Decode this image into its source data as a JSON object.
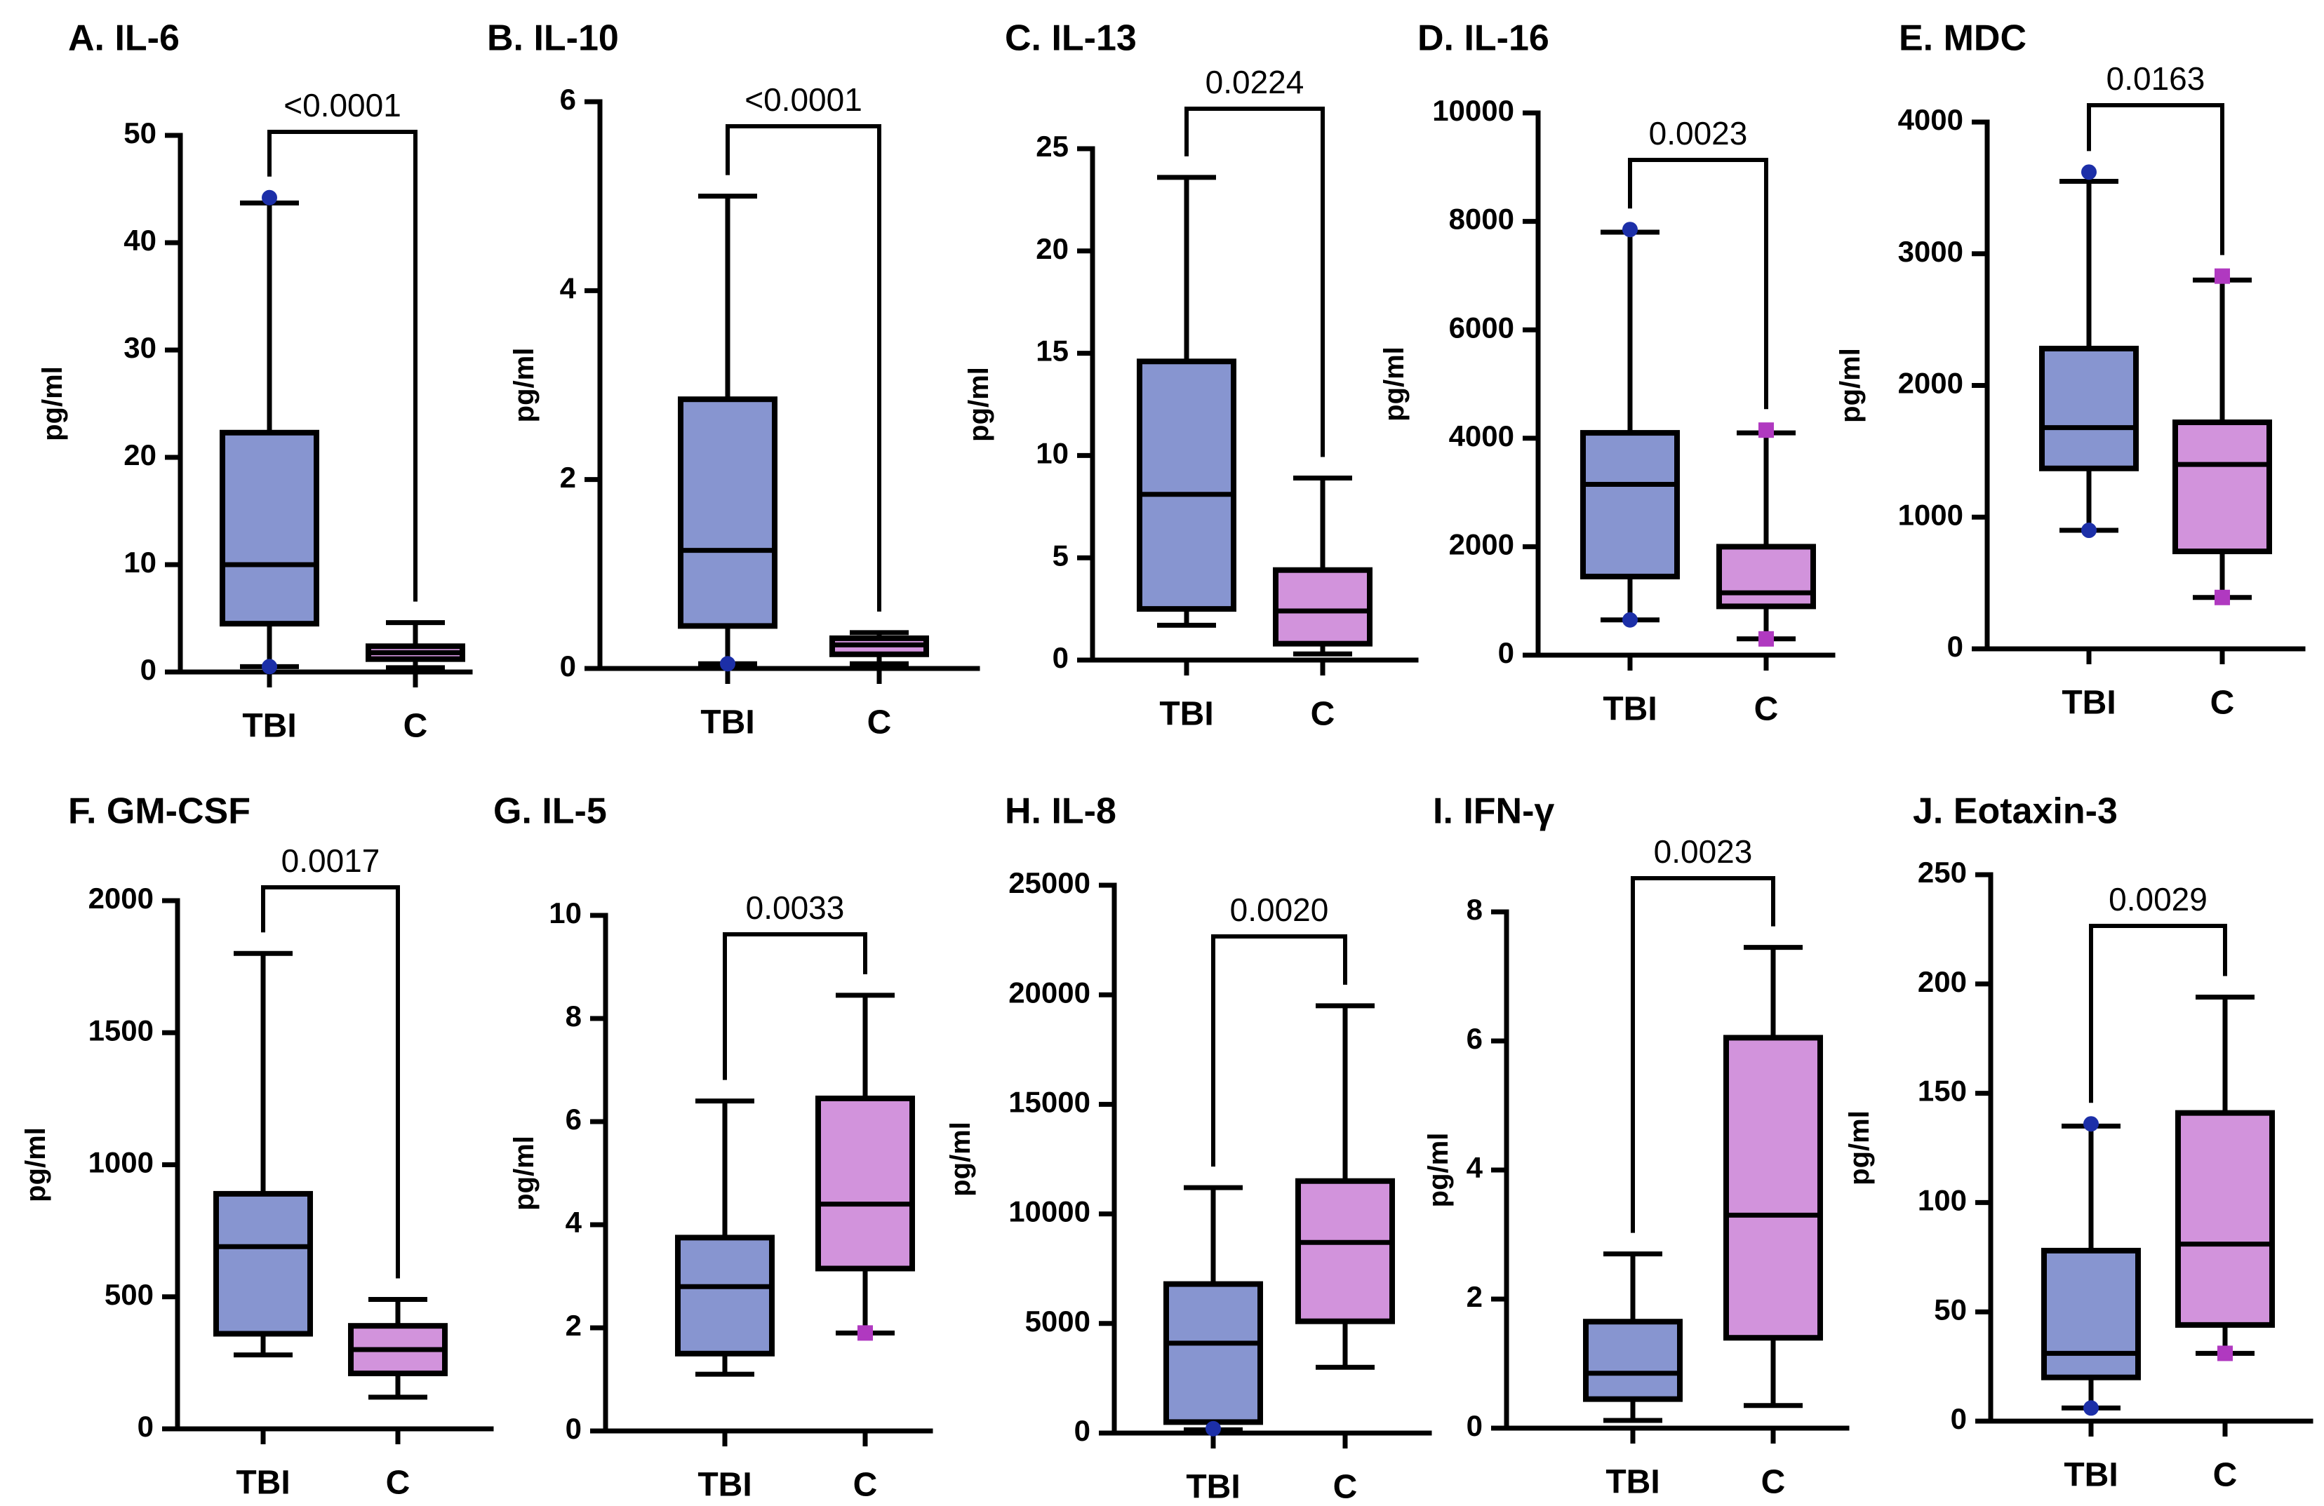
{
  "colors": {
    "tbi": "#8795d0",
    "c": "#d293dc",
    "tbi_point": "#1c2fa8",
    "c_point": "#b039c0"
  },
  "chart_data": [
    {
      "id": "A",
      "title": "A. IL-6",
      "type": "box",
      "ylabel": "pg/ml",
      "ylim": [
        0,
        50
      ],
      "yticks": [
        "0",
        "10",
        "20",
        "30",
        "40",
        "50"
      ],
      "pvalue": "<0.0001",
      "categories": [
        "TBI",
        "C"
      ],
      "series": [
        {
          "name": "TBI",
          "min": 0.5,
          "q1": 4.5,
          "median": 10,
          "q3": 22.3,
          "max": 43.7,
          "points": [
            44.2,
            0.5
          ]
        },
        {
          "name": "C",
          "min": 0.4,
          "q1": 1.2,
          "median": 1.8,
          "q3": 2.4,
          "max": 4.6,
          "points": []
        }
      ]
    },
    {
      "id": "B",
      "title": "B. IL-10",
      "type": "box",
      "ylabel": "pg/ml",
      "ylim": [
        0,
        6
      ],
      "yticks": [
        "0",
        "2",
        "4",
        "6"
      ],
      "pvalue": "<0.0001",
      "categories": [
        "TBI",
        "C"
      ],
      "series": [
        {
          "name": "TBI",
          "min": 0.05,
          "q1": 0.45,
          "median": 1.25,
          "q3": 2.85,
          "max": 5.0,
          "points": [
            0.05
          ]
        },
        {
          "name": "C",
          "min": 0.05,
          "q1": 0.15,
          "median": 0.25,
          "q3": 0.32,
          "max": 0.38,
          "points": []
        }
      ]
    },
    {
      "id": "C",
      "title": "C. IL-13",
      "type": "box",
      "ylabel": "pg/ml",
      "ylim": [
        0,
        25
      ],
      "yticks": [
        "0",
        "5",
        "10",
        "15",
        "20",
        "25"
      ],
      "pvalue": "0.0224",
      "categories": [
        "TBI",
        "C"
      ],
      "series": [
        {
          "name": "TBI",
          "min": 1.7,
          "q1": 2.5,
          "median": 8.1,
          "q3": 14.6,
          "max": 23.6,
          "points": []
        },
        {
          "name": "C",
          "min": 0.3,
          "q1": 0.8,
          "median": 2.4,
          "q3": 4.4,
          "max": 8.9,
          "points": []
        }
      ]
    },
    {
      "id": "D",
      "title": "D. IL-16",
      "type": "box",
      "ylabel": "pg/ml",
      "ylim": [
        0,
        10000
      ],
      "yticks": [
        "0",
        "2000",
        "4000",
        "6000",
        "8000",
        "10000"
      ],
      "pvalue": "0.0023",
      "categories": [
        "TBI",
        "C"
      ],
      "series": [
        {
          "name": "TBI",
          "min": 650,
          "q1": 1450,
          "median": 3150,
          "q3": 4100,
          "max": 7800,
          "points": [
            7850,
            650
          ]
        },
        {
          "name": "C",
          "min": 300,
          "q1": 900,
          "median": 1150,
          "q3": 2000,
          "max": 4100,
          "points": [
            4150,
            300
          ]
        }
      ]
    },
    {
      "id": "E",
      "title": "E. MDC",
      "type": "box",
      "ylabel": "pg/ml",
      "ylim": [
        0,
        4000
      ],
      "yticks": [
        "0",
        "1000",
        "2000",
        "3000",
        "4000"
      ],
      "pvalue": "0.0163",
      "categories": [
        "TBI",
        "C"
      ],
      "series": [
        {
          "name": "TBI",
          "min": 900,
          "q1": 1370,
          "median": 1680,
          "q3": 2280,
          "max": 3550,
          "points": [
            3620,
            900
          ]
        },
        {
          "name": "C",
          "min": 390,
          "q1": 740,
          "median": 1400,
          "q3": 1720,
          "max": 2800,
          "points": [
            2830,
            390
          ]
        }
      ]
    },
    {
      "id": "F",
      "title": "F. GM-CSF",
      "type": "box",
      "ylabel": "pg/ml",
      "ylim": [
        0,
        2000
      ],
      "yticks": [
        "0",
        "500",
        "1000",
        "1500",
        "2000"
      ],
      "pvalue": "0.0017",
      "categories": [
        "TBI",
        "C"
      ],
      "series": [
        {
          "name": "TBI",
          "min": 280,
          "q1": 360,
          "median": 690,
          "q3": 890,
          "max": 1800,
          "points": []
        },
        {
          "name": "C",
          "min": 120,
          "q1": 210,
          "median": 300,
          "q3": 390,
          "max": 490,
          "points": []
        }
      ]
    },
    {
      "id": "G",
      "title": "G. IL-5",
      "type": "box",
      "ylabel": "pg/ml",
      "ylim": [
        0,
        10
      ],
      "yticks": [
        "0",
        "2",
        "4",
        "6",
        "8",
        "10"
      ],
      "pvalue": "0.0033",
      "categories": [
        "TBI",
        "C"
      ],
      "series": [
        {
          "name": "TBI",
          "min": 1.1,
          "q1": 1.5,
          "median": 2.8,
          "q3": 3.75,
          "max": 6.4,
          "points": []
        },
        {
          "name": "C",
          "min": 1.9,
          "q1": 3.15,
          "median": 4.4,
          "q3": 6.45,
          "max": 8.45,
          "points": [
            1.9
          ]
        }
      ]
    },
    {
      "id": "H",
      "title": "H. IL-8",
      "type": "box",
      "ylabel": "pg/ml",
      "ylim": [
        0,
        25000
      ],
      "yticks": [
        "0",
        "5000",
        "10000",
        "15000",
        "20000",
        "25000"
      ],
      "pvalue": "0.0020",
      "categories": [
        "TBI",
        "C"
      ],
      "series": [
        {
          "name": "TBI",
          "min": 150,
          "q1": 500,
          "median": 4100,
          "q3": 6800,
          "max": 11200,
          "points": [
            200
          ]
        },
        {
          "name": "C",
          "min": 3000,
          "q1": 5100,
          "median": 8700,
          "q3": 11500,
          "max": 19500,
          "points": []
        }
      ]
    },
    {
      "id": "I",
      "title": "I. IFN-γ",
      "type": "box",
      "ylabel": "pg/ml",
      "ylim": [
        0,
        8
      ],
      "yticks": [
        "0",
        "2",
        "4",
        "6",
        "8"
      ],
      "pvalue": "0.0023",
      "categories": [
        "TBI",
        "C"
      ],
      "series": [
        {
          "name": "TBI",
          "min": 0.12,
          "q1": 0.45,
          "median": 0.85,
          "q3": 1.65,
          "max": 2.7,
          "points": []
        },
        {
          "name": "C",
          "min": 0.35,
          "q1": 1.4,
          "median": 3.3,
          "q3": 6.05,
          "max": 7.45,
          "points": []
        }
      ]
    },
    {
      "id": "J",
      "title": "J. Eotaxin-3",
      "type": "box",
      "ylabel": "pg/ml",
      "ylim": [
        0,
        250
      ],
      "yticks": [
        "0",
        "50",
        "100",
        "150",
        "200",
        "250"
      ],
      "pvalue": "0.0029",
      "categories": [
        "TBI",
        "C"
      ],
      "series": [
        {
          "name": "TBI",
          "min": 6,
          "q1": 20,
          "median": 31,
          "q3": 78,
          "max": 135,
          "points": [
            136,
            6
          ]
        },
        {
          "name": "C",
          "min": 31,
          "q1": 44,
          "median": 81,
          "q3": 141,
          "max": 194,
          "points": [
            31
          ]
        }
      ]
    }
  ]
}
